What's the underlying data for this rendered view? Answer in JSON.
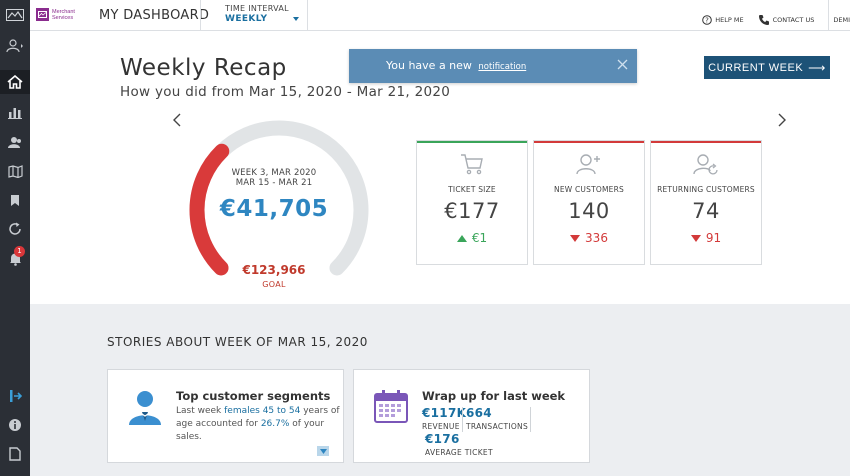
{
  "topbar": {
    "brand_line1": "Merchant",
    "brand_line2": "Services",
    "app_title": "MY DASHBOARD",
    "interval_label": "TIME INTERVAL",
    "interval_value": "WEEKLY",
    "help": "HELP ME",
    "contact": "CONTACT US",
    "user": "DEMI"
  },
  "sidebar": {
    "items": [
      {
        "icon": "merchant-logo-icon"
      },
      {
        "icon": "user-menu-icon"
      },
      {
        "icon": "home-icon",
        "active": true
      },
      {
        "icon": "bar-chart-icon"
      },
      {
        "icon": "customers-icon"
      },
      {
        "icon": "map-icon"
      },
      {
        "icon": "bookmark-icon"
      },
      {
        "icon": "refresh-icon"
      },
      {
        "icon": "notifications-icon",
        "badge": "1"
      },
      {
        "icon": "logout-icon"
      },
      {
        "icon": "info-icon"
      },
      {
        "icon": "document-icon"
      }
    ]
  },
  "notification": {
    "text": "You have a new",
    "link": "notification"
  },
  "recap": {
    "title": "Weekly Recap",
    "subtitle": "How you did from Mar 15, 2020 - Mar 21, 2020",
    "current_week_button": "CURRENT WEEK"
  },
  "gauge": {
    "week_line1": "WEEK 3, MAR 2020",
    "week_line2": "MAR 15 - MAR 21",
    "value": "€41,705",
    "goal_value": "€123,966",
    "goal_label": "GOAL",
    "progress": 0.336,
    "colors": {
      "progress": "#d93a3a",
      "track": "#e1e4e6"
    }
  },
  "cards": [
    {
      "label": "TICKET SIZE",
      "value": "€177",
      "delta": "€1",
      "direction": "up",
      "accent": "#3aa55a",
      "icon": "cart-icon"
    },
    {
      "label": "NEW CUSTOMERS",
      "value": "140",
      "delta": "336",
      "direction": "down",
      "accent": "#d33a3a",
      "icon": "add-user-icon"
    },
    {
      "label": "RETURNING CUSTOMERS",
      "value": "74",
      "delta": "91",
      "direction": "down",
      "accent": "#d33a3a",
      "icon": "returning-user-icon"
    }
  ],
  "stories": {
    "title": "STORIES ABOUT WEEK OF MAR 15, 2020",
    "segments": {
      "title": "Top customer segments",
      "t1": "Last week ",
      "h1": "females 45 to 54",
      "t2": " years of",
      "t3": "age accounted for ",
      "h2": "26.7%",
      "t4": " of your",
      "t5": "sales."
    },
    "wrapup": {
      "title": "Wrap up for last week",
      "revenue": "€117K",
      "revenue_label": "REVENUE",
      "transactions": "664",
      "transactions_label": "TRANSACTIONS",
      "avg_ticket": "€176",
      "avg_ticket_label": "AVERAGE TICKET"
    }
  }
}
